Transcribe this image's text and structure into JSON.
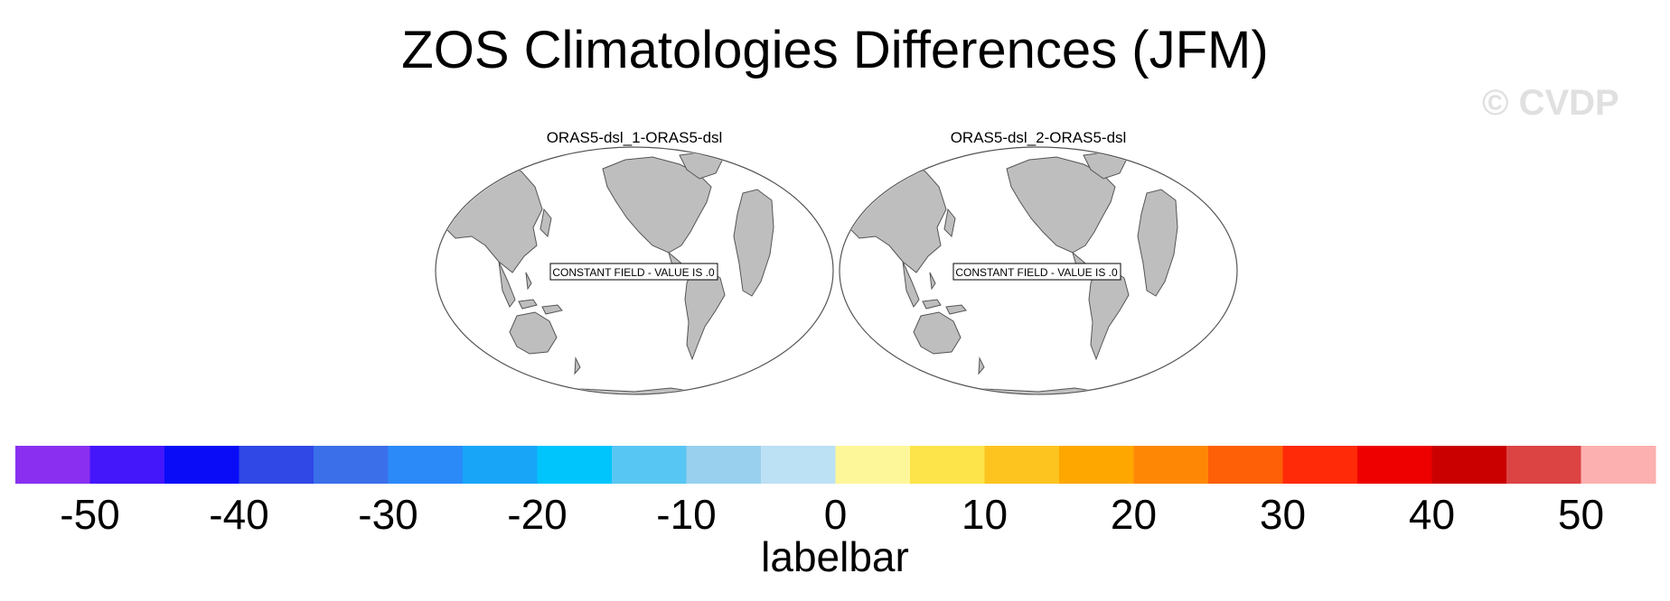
{
  "title": "ZOS Climatologies Differences (JFM)",
  "watermark": "© CVDP",
  "panels": [
    {
      "title": "ORAS5-dsl_1-ORAS5-dsl",
      "note": "CONSTANT FIELD - VALUE IS .0"
    },
    {
      "title": "ORAS5-dsl_2-ORAS5-dsl",
      "note": "CONSTANT FIELD - VALUE IS .0"
    }
  ],
  "labelbar": {
    "title": "labelbar",
    "colors": [
      "#8a2ff0",
      "#4416fa",
      "#0a0cf8",
      "#2f48e6",
      "#3b6fea",
      "#2b8af8",
      "#18a5f8",
      "#00c4fc",
      "#58c6f2",
      "#98d0ee",
      "#bce0f4",
      "#fef79a",
      "#fde44a",
      "#fdc420",
      "#fda700",
      "#fe8806",
      "#fe6008",
      "#ff2a08",
      "#ee0000",
      "#ca0000",
      "#dc4343",
      "#fdb0b0"
    ],
    "tick_labels": [
      "-50",
      "-40",
      "-30",
      "-20",
      "-10",
      "0",
      "10",
      "20",
      "30",
      "40",
      "50"
    ]
  },
  "colors": {
    "land": "#bebebe",
    "coast": "#555555",
    "ocean": "#ffffff"
  }
}
